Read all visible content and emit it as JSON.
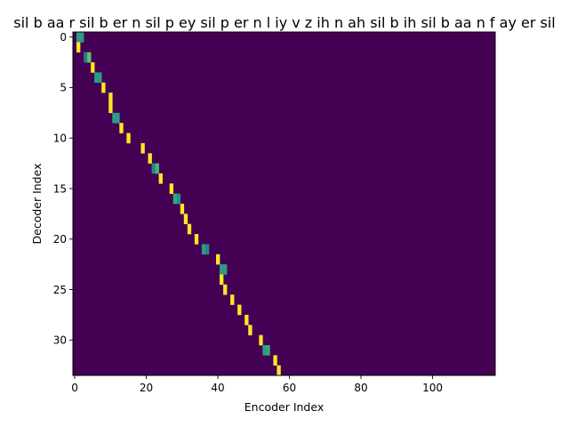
{
  "chart_data": {
    "type": "heatmap",
    "title": "sil b aa r sil b er n sil p ey sil p er n l iy v z ih n ah sil b ih sil b aa n f ay er sil",
    "xlabel": "Encoder Index",
    "ylabel": "Decoder Index",
    "n_encoder": 118,
    "n_decoder": 34,
    "x_ticks": [
      0,
      20,
      40,
      60,
      80,
      100
    ],
    "y_ticks": [
      0,
      5,
      10,
      15,
      20,
      25,
      30
    ],
    "colormap": "viridis",
    "background_color": "#440154",
    "alignment": [
      {
        "decoder": 0,
        "cells": [
          {
            "encoder": 1,
            "weight": 0.55
          },
          {
            "encoder": 2,
            "weight": 0.55
          }
        ]
      },
      {
        "decoder": 1,
        "cells": [
          {
            "encoder": 1,
            "weight": 1.0
          }
        ]
      },
      {
        "decoder": 2,
        "cells": [
          {
            "encoder": 3,
            "weight": 0.4
          },
          {
            "encoder": 4,
            "weight": 0.75
          }
        ]
      },
      {
        "decoder": 3,
        "cells": [
          {
            "encoder": 5,
            "weight": 1.0
          }
        ]
      },
      {
        "decoder": 4,
        "cells": [
          {
            "encoder": 6,
            "weight": 0.55
          },
          {
            "encoder": 7,
            "weight": 0.55
          }
        ]
      },
      {
        "decoder": 5,
        "cells": [
          {
            "encoder": 8,
            "weight": 1.0
          }
        ]
      },
      {
        "decoder": 6,
        "cells": [
          {
            "encoder": 10,
            "weight": 1.0
          }
        ]
      },
      {
        "decoder": 7,
        "cells": [
          {
            "encoder": 10,
            "weight": 1.0
          }
        ]
      },
      {
        "decoder": 8,
        "cells": [
          {
            "encoder": 11,
            "weight": 0.55
          },
          {
            "encoder": 12,
            "weight": 0.55
          }
        ]
      },
      {
        "decoder": 9,
        "cells": [
          {
            "encoder": 13,
            "weight": 1.0
          }
        ]
      },
      {
        "decoder": 10,
        "cells": [
          {
            "encoder": 15,
            "weight": 1.0
          }
        ]
      },
      {
        "decoder": 11,
        "cells": [
          {
            "encoder": 19,
            "weight": 1.0
          }
        ]
      },
      {
        "decoder": 12,
        "cells": [
          {
            "encoder": 21,
            "weight": 1.0
          }
        ]
      },
      {
        "decoder": 13,
        "cells": [
          {
            "encoder": 22,
            "weight": 0.45
          },
          {
            "encoder": 23,
            "weight": 0.65
          }
        ]
      },
      {
        "decoder": 14,
        "cells": [
          {
            "encoder": 24,
            "weight": 1.0
          }
        ]
      },
      {
        "decoder": 15,
        "cells": [
          {
            "encoder": 27,
            "weight": 1.0
          }
        ]
      },
      {
        "decoder": 16,
        "cells": [
          {
            "encoder": 28,
            "weight": 0.6
          },
          {
            "encoder": 29,
            "weight": 0.5
          }
        ]
      },
      {
        "decoder": 17,
        "cells": [
          {
            "encoder": 30,
            "weight": 1.0
          }
        ]
      },
      {
        "decoder": 18,
        "cells": [
          {
            "encoder": 31,
            "weight": 1.0
          }
        ]
      },
      {
        "decoder": 19,
        "cells": [
          {
            "encoder": 32,
            "weight": 1.0
          }
        ]
      },
      {
        "decoder": 20,
        "cells": [
          {
            "encoder": 34,
            "weight": 1.0
          }
        ]
      },
      {
        "decoder": 21,
        "cells": [
          {
            "encoder": 36,
            "weight": 0.55
          },
          {
            "encoder": 37,
            "weight": 0.45
          }
        ]
      },
      {
        "decoder": 22,
        "cells": [
          {
            "encoder": 40,
            "weight": 1.0
          }
        ]
      },
      {
        "decoder": 23,
        "cells": [
          {
            "encoder": 41,
            "weight": 0.55
          },
          {
            "encoder": 42,
            "weight": 0.55
          }
        ]
      },
      {
        "decoder": 24,
        "cells": [
          {
            "encoder": 41,
            "weight": 1.0
          }
        ]
      },
      {
        "decoder": 25,
        "cells": [
          {
            "encoder": 42,
            "weight": 1.0
          }
        ]
      },
      {
        "decoder": 26,
        "cells": [
          {
            "encoder": 44,
            "weight": 1.0
          }
        ]
      },
      {
        "decoder": 27,
        "cells": [
          {
            "encoder": 46,
            "weight": 1.0
          }
        ]
      },
      {
        "decoder": 28,
        "cells": [
          {
            "encoder": 48,
            "weight": 1.0
          }
        ]
      },
      {
        "decoder": 29,
        "cells": [
          {
            "encoder": 49,
            "weight": 1.0
          }
        ]
      },
      {
        "decoder": 30,
        "cells": [
          {
            "encoder": 52,
            "weight": 1.0
          }
        ]
      },
      {
        "decoder": 31,
        "cells": [
          {
            "encoder": 53,
            "weight": 0.55
          },
          {
            "encoder": 54,
            "weight": 0.6
          }
        ]
      },
      {
        "decoder": 32,
        "cells": [
          {
            "encoder": 56,
            "weight": 1.0
          }
        ]
      },
      {
        "decoder": 33,
        "cells": [
          {
            "encoder": 57,
            "weight": 1.0
          }
        ]
      }
    ]
  }
}
